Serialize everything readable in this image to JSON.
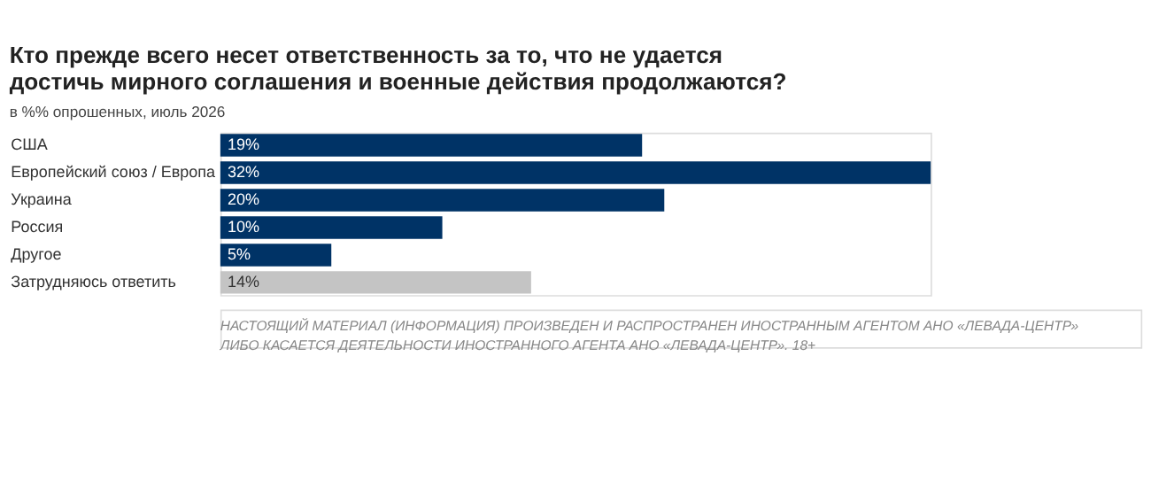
{
  "chart_data": {
    "type": "bar",
    "orientation": "horizontal",
    "title": "Кто прежде всего несет ответственность за то, что не удается достичь мирного соглашения и военные действия продолжаются?",
    "subtitle": "в %% опрошенных, июль 2026",
    "categories": [
      "США",
      "Европейский союз / Европа",
      "Украина",
      "Россия",
      "Другое",
      "Затрудняюсь ответить"
    ],
    "values": [
      19,
      32,
      20,
      10,
      5,
      14
    ],
    "colors": [
      "#003366",
      "#003366",
      "#003366",
      "#003366",
      "#003366",
      "#c4c4c4"
    ],
    "value_labels": [
      "19%",
      "32%",
      "20%",
      "10%",
      "5%",
      "14%"
    ],
    "annotations": [
      "НАСТОЯЩИЙ МАТЕРИАЛ (ИНФОРМАЦИЯ) ПРОИЗВЕДЕН И РАСПРОСТРАНЕН ИНОСТРАННЫМ АГЕНТОМ АНО «ЛЕВАДА-ЦЕНТР» ЛИБО КАСАЕТСЯ ДЕЯТЕЛЬНОСТИ ИНОСТРАННОГО АГЕНТА АНО «ЛЕВАДА-ЦЕНТР». 18+"
    ],
    "grid": false,
    "legend": false
  }
}
